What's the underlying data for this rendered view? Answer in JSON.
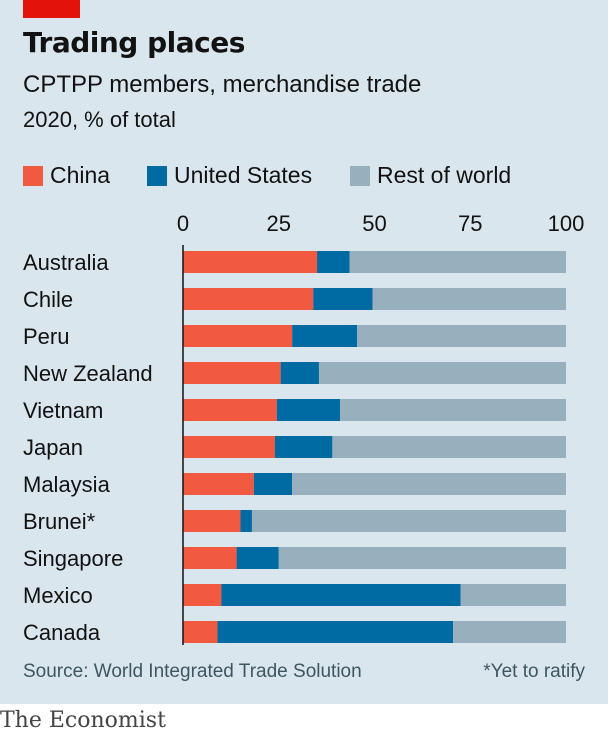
{
  "header": {
    "title": "Trading places",
    "subtitle": "CPTPP members, merchandise trade",
    "unit": "2020, % of total"
  },
  "legend": [
    {
      "label": "China",
      "color": "#f15a40"
    },
    {
      "label": "United States",
      "color": "#006ba2"
    },
    {
      "label": "Rest of world",
      "color": "#98b0bd"
    }
  ],
  "chart_data": {
    "type": "bar",
    "orientation": "horizontal",
    "stacked": true,
    "categories": [
      "Australia",
      "Chile",
      "Peru",
      "New Zealand",
      "Vietnam",
      "Japan",
      "Malaysia",
      "Brunei*",
      "Singapore",
      "Mexico",
      "Canada"
    ],
    "series": [
      {
        "name": "China",
        "color": "#f15a40",
        "values": [
          35,
          34,
          28.5,
          25.5,
          24.5,
          24,
          18.5,
          15,
          14,
          10,
          9
        ]
      },
      {
        "name": "United States",
        "color": "#006ba2",
        "values": [
          8.5,
          15.5,
          17,
          10,
          16.5,
          15,
          10,
          3,
          11,
          62.5,
          61.5
        ]
      },
      {
        "name": "Rest of world",
        "color": "#98b0bd",
        "values": [
          56.5,
          50.5,
          54.5,
          64.5,
          59,
          61,
          71.5,
          82,
          75,
          27.5,
          29.5
        ]
      }
    ],
    "xticks": [
      0,
      25,
      50,
      75,
      100
    ],
    "xlim": [
      0,
      100
    ],
    "legend_position": "top"
  },
  "footer": {
    "source": "Source: World Integrated Trade Solution",
    "footnote": "*Yet to ratify",
    "brand": "The Economist"
  }
}
